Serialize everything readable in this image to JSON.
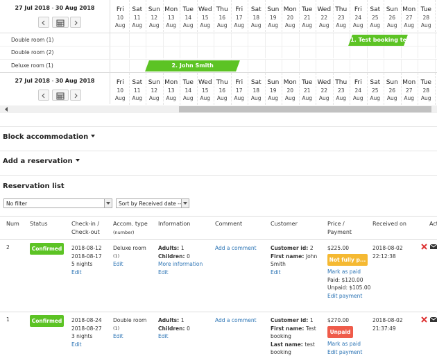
{
  "calendar": {
    "range_start": "27 Jul 2018",
    "range_sep": " - ",
    "range_end": "30 Aug 2018",
    "days": [
      {
        "weekday": "Fri",
        "day": 10,
        "month": "Aug"
      },
      {
        "weekday": "Sat",
        "day": 11,
        "month": "Aug"
      },
      {
        "weekday": "Sun",
        "day": 12,
        "month": "Aug"
      },
      {
        "weekday": "Mon",
        "day": 13,
        "month": "Aug"
      },
      {
        "weekday": "Tue",
        "day": 14,
        "month": "Aug"
      },
      {
        "weekday": "Wed",
        "day": 15,
        "month": "Aug"
      },
      {
        "weekday": "Thu",
        "day": 16,
        "month": "Aug"
      },
      {
        "weekday": "Fri",
        "day": 17,
        "month": "Aug"
      },
      {
        "weekday": "Sat",
        "day": 18,
        "month": "Aug"
      },
      {
        "weekday": "Sun",
        "day": 19,
        "month": "Aug"
      },
      {
        "weekday": "Mon",
        "day": 20,
        "month": "Aug"
      },
      {
        "weekday": "Tue",
        "day": 21,
        "month": "Aug"
      },
      {
        "weekday": "Wed",
        "day": 22,
        "month": "Aug"
      },
      {
        "weekday": "Thu",
        "day": 23,
        "month": "Aug"
      },
      {
        "weekday": "Fri",
        "day": 24,
        "month": "Aug"
      },
      {
        "weekday": "Sat",
        "day": 25,
        "month": "Aug"
      },
      {
        "weekday": "Sun",
        "day": 26,
        "month": "Aug"
      },
      {
        "weekday": "Mon",
        "day": 27,
        "month": "Aug"
      },
      {
        "weekday": "Tue",
        "day": 28,
        "month": "Aug"
      }
    ],
    "rooms": [
      {
        "name": "Double room (1)",
        "booking": "1. Test booking te"
      },
      {
        "name": "Double room (2)"
      },
      {
        "name": "Deluxe room (1)",
        "booking": "2. John Smith"
      }
    ]
  },
  "sections": [
    "Block accommodation",
    "Add a reservation"
  ],
  "list_title": "Reservation list",
  "filters": {
    "filter": "No filter",
    "sort": "Sort by Received date --"
  },
  "columns": [
    {
      "label": "Num"
    },
    {
      "label": "Status"
    },
    {
      "label": "Check-in / Check-out"
    },
    {
      "label": "Accom. type",
      "note": "(number)"
    },
    {
      "label": "Information"
    },
    {
      "label": "Comment"
    },
    {
      "label": "Customer"
    },
    {
      "label": "Price / Payment"
    },
    {
      "label": "Received on"
    },
    {
      "label": "Act"
    }
  ],
  "rows": [
    {
      "num": 2,
      "status": "Confirmed",
      "checkin": "2018-08-12",
      "checkout": "2018-08-17",
      "nights": "5 nights",
      "dates_edit": "Edit",
      "accom": "Deluxe room",
      "accom_num": "(1)",
      "accom_edit": "Edit",
      "adults_label": "Adults:",
      "adults": 1,
      "children_label": "Children:",
      "children": 0,
      "more": "More information",
      "info_edit": "Edit",
      "comment": "Add a comment",
      "customer": [
        {
          "label": "Customer id:",
          "value": "2"
        },
        {
          "label": "First name:",
          "value": "John Smith"
        }
      ],
      "customer_edit": "Edit",
      "price": "$225.00",
      "payment": "Not fully p...",
      "payment_kind": "partial",
      "mark_paid": "Mark as paid",
      "paid": "Paid: $120.00",
      "unpaid": "Unpaid: $105.00",
      "edit_payment": "Edit payment",
      "received_date": "2018-08-02",
      "received_time": "22:12:38"
    },
    {
      "num": 1,
      "status": "Confirmed",
      "checkin": "2018-08-24",
      "checkout": "2018-08-27",
      "nights": "3 nights",
      "dates_edit": "Edit",
      "accom": "Double room",
      "accom_num": "(1)",
      "accom_edit": "Edit",
      "adults_label": "Adults:",
      "adults": 1,
      "children_label": "Children:",
      "children": 0,
      "info_edit": "Edit",
      "comment": "Add a comment",
      "customer": [
        {
          "label": "Customer id:",
          "value": "1"
        },
        {
          "label": "First name:",
          "value": "Test booking"
        },
        {
          "label": "Last name:",
          "value": "test booking"
        }
      ],
      "price": "$270.00",
      "payment": "Unpaid",
      "payment_kind": "unpaid",
      "mark_paid": "Mark as paid",
      "edit_payment": "Edit payment",
      "received_date": "2018-08-02",
      "received_time": "21:37:49"
    }
  ]
}
